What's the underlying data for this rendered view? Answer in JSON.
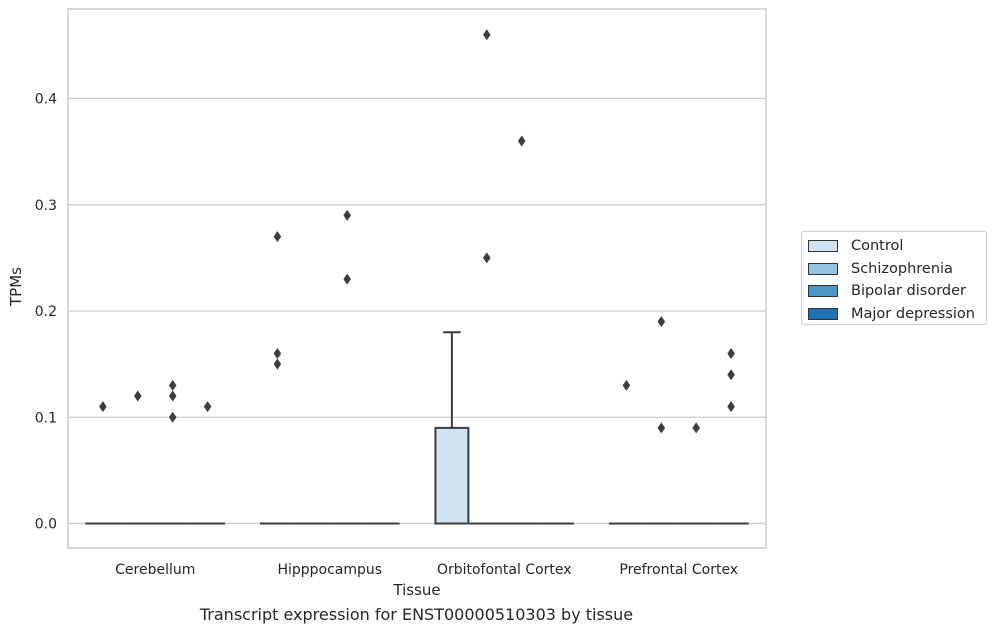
{
  "chart_data": {
    "type": "box",
    "title": "",
    "caption": "Transcript expression for ENST00000510303 by tissue",
    "xlabel": "Tissue",
    "ylabel": "TPMs",
    "ylim": [
      -0.023,
      0.485
    ],
    "yticks": [
      "0.0",
      "0.1",
      "0.2",
      "0.3",
      "0.4"
    ],
    "ytick_values": [
      0.0,
      0.1,
      0.2,
      0.3,
      0.4
    ],
    "grid": true,
    "legend_position": "right",
    "categories": [
      "Cerebellum",
      "Hipppocampus",
      "Orbitofontal Cortex",
      "Prefrontal Cortex"
    ],
    "series": [
      {
        "name": "Control",
        "color": "#d0e1f2",
        "boxes": [
          {
            "q1": 0,
            "median": 0,
            "q3": 0,
            "whisker_low": 0,
            "whisker_high": 0,
            "outliers": [
              0.11
            ]
          },
          {
            "q1": 0,
            "median": 0,
            "q3": 0,
            "whisker_low": 0,
            "whisker_high": 0,
            "outliers": [
              0.27,
              0.16,
              0.15
            ]
          },
          {
            "q1": 0,
            "median": 0,
            "q3": 0.09,
            "whisker_low": 0,
            "whisker_high": 0.18,
            "outliers": []
          },
          {
            "q1": 0,
            "median": 0,
            "q3": 0,
            "whisker_low": 0,
            "whisker_high": 0,
            "outliers": [
              0.13
            ]
          }
        ]
      },
      {
        "name": "Schizophrenia",
        "color": "#94c4df",
        "boxes": [
          {
            "q1": 0,
            "median": 0,
            "q3": 0,
            "whisker_low": 0,
            "whisker_high": 0,
            "outliers": [
              0.12
            ]
          },
          {
            "q1": 0,
            "median": 0,
            "q3": 0,
            "whisker_low": 0,
            "whisker_high": 0,
            "outliers": []
          },
          {
            "q1": 0,
            "median": 0,
            "q3": 0,
            "whisker_low": 0,
            "whisker_high": 0,
            "outliers": [
              0.46,
              0.25
            ]
          },
          {
            "q1": 0,
            "median": 0,
            "q3": 0,
            "whisker_low": 0,
            "whisker_high": 0,
            "outliers": [
              0.19,
              0.09
            ]
          }
        ]
      },
      {
        "name": "Bipolar disorder",
        "color": "#4a98c9",
        "boxes": [
          {
            "q1": 0,
            "median": 0,
            "q3": 0,
            "whisker_low": 0,
            "whisker_high": 0,
            "outliers": [
              0.13,
              0.12,
              0.1
            ]
          },
          {
            "q1": 0,
            "median": 0,
            "q3": 0,
            "whisker_low": 0,
            "whisker_high": 0,
            "outliers": [
              0.29,
              0.23
            ]
          },
          {
            "q1": 0,
            "median": 0,
            "q3": 0,
            "whisker_low": 0,
            "whisker_high": 0,
            "outliers": [
              0.36
            ]
          },
          {
            "q1": 0,
            "median": 0,
            "q3": 0,
            "whisker_low": 0,
            "whisker_high": 0,
            "outliers": [
              0.09
            ]
          }
        ]
      },
      {
        "name": "Major depression",
        "color": "#2171b5",
        "boxes": [
          {
            "q1": 0,
            "median": 0,
            "q3": 0,
            "whisker_low": 0,
            "whisker_high": 0,
            "outliers": [
              0.11
            ]
          },
          {
            "q1": 0,
            "median": 0,
            "q3": 0,
            "whisker_low": 0,
            "whisker_high": 0,
            "outliers": []
          },
          {
            "q1": 0,
            "median": 0,
            "q3": 0,
            "whisker_low": 0,
            "whisker_high": 0,
            "outliers": []
          },
          {
            "q1": 0,
            "median": 0,
            "q3": 0,
            "whisker_low": 0,
            "whisker_high": 0,
            "outliers": [
              0.16,
              0.14,
              0.11
            ]
          }
        ]
      }
    ]
  }
}
